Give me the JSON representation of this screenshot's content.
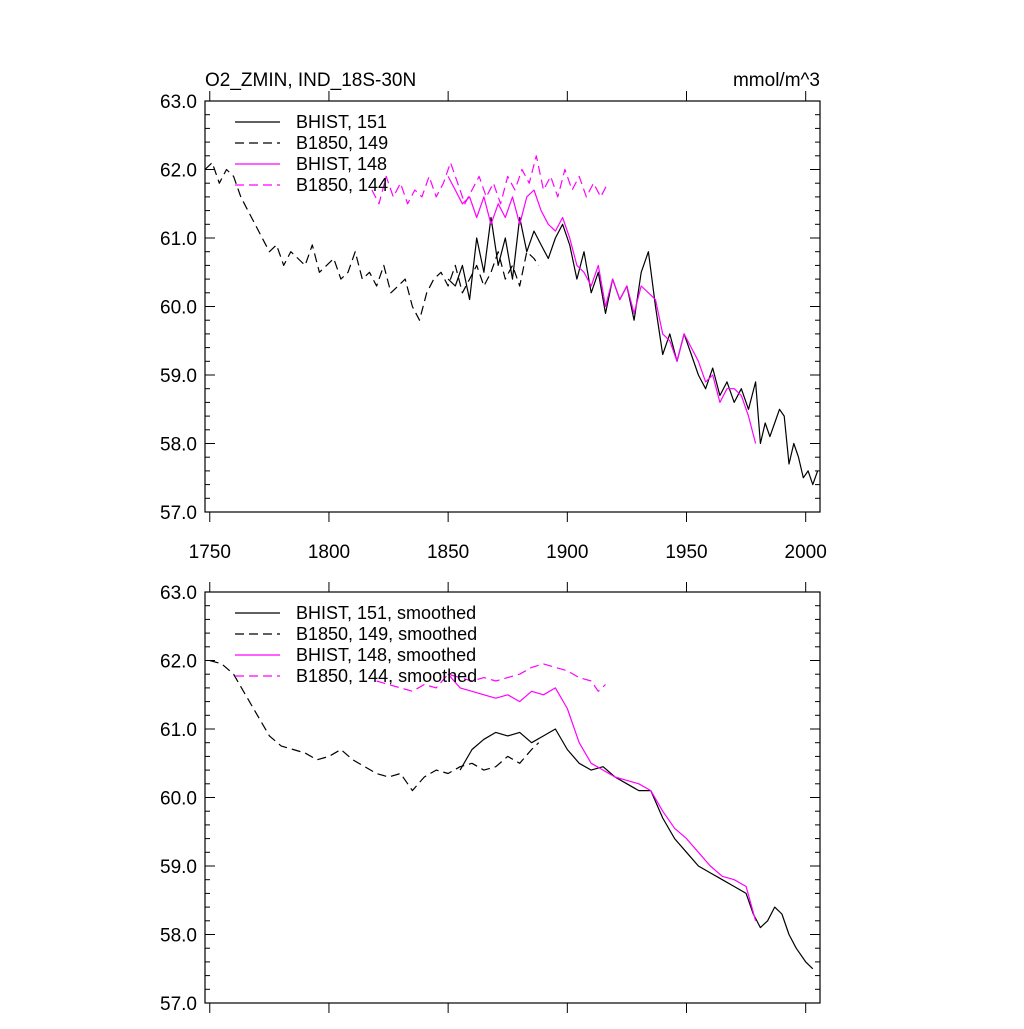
{
  "chart_data": [
    {
      "type": "line",
      "title": "O2_ZMIN, IND_18S-30N",
      "units": "mmol/m^3",
      "xlim": [
        1748,
        2006
      ],
      "ylim": [
        57.0,
        63.0
      ],
      "x_ticks": [
        1750,
        1800,
        1850,
        1900,
        1950,
        2000
      ],
      "y_ticks": [
        "57.0",
        "58.0",
        "59.0",
        "60.0",
        "61.0",
        "62.0",
        "63.0"
      ],
      "legend_position": "top-left",
      "series": [
        {
          "name": "BHIST, 151",
          "color": "#000000",
          "dash": "solid",
          "x": [
            1850,
            1853,
            1856,
            1859,
            1862,
            1865,
            1868,
            1871,
            1874,
            1877,
            1880,
            1883,
            1886,
            1889,
            1892,
            1895,
            1898,
            1901,
            1904,
            1907,
            1910,
            1913,
            1916,
            1919,
            1922,
            1925,
            1928,
            1931,
            1934,
            1937,
            1940,
            1943,
            1946,
            1949,
            1952,
            1955,
            1958,
            1961,
            1964,
            1967,
            1970,
            1973,
            1976,
            1979,
            1981,
            1983,
            1985,
            1987,
            1989,
            1991,
            1993,
            1995,
            1997,
            1999,
            2001,
            2003,
            2005
          ],
          "y": [
            60.4,
            60.3,
            60.6,
            60.1,
            61.0,
            60.5,
            61.3,
            60.6,
            61.0,
            60.4,
            61.3,
            60.8,
            61.1,
            60.9,
            60.7,
            61.0,
            61.2,
            60.9,
            60.4,
            60.8,
            60.2,
            60.5,
            59.9,
            60.4,
            60.1,
            60.3,
            59.8,
            60.5,
            60.8,
            60.0,
            59.3,
            59.6,
            59.2,
            59.6,
            59.3,
            59.0,
            58.8,
            59.1,
            58.7,
            58.9,
            58.6,
            58.8,
            58.5,
            58.9,
            58.0,
            58.3,
            58.1,
            58.3,
            58.5,
            58.4,
            57.7,
            58.0,
            57.8,
            57.5,
            57.6,
            57.4,
            57.6
          ]
        },
        {
          "name": "B1850, 149",
          "color": "#000000",
          "dash": "dashed",
          "x": [
            1748,
            1751,
            1754,
            1757,
            1760,
            1763,
            1766,
            1769,
            1772,
            1775,
            1778,
            1781,
            1784,
            1787,
            1790,
            1793,
            1796,
            1799,
            1802,
            1805,
            1808,
            1811,
            1814,
            1817,
            1820,
            1823,
            1826,
            1829,
            1832,
            1835,
            1838,
            1841,
            1844,
            1847,
            1850,
            1853,
            1856,
            1859,
            1862,
            1865,
            1868,
            1871,
            1874,
            1877,
            1880,
            1883,
            1886,
            1888
          ],
          "y": [
            62.0,
            62.1,
            61.8,
            62.0,
            61.9,
            61.6,
            61.4,
            61.2,
            61.0,
            60.8,
            60.9,
            60.6,
            60.8,
            60.7,
            60.6,
            60.9,
            60.5,
            60.6,
            60.7,
            60.4,
            60.5,
            60.8,
            60.4,
            60.5,
            60.3,
            60.6,
            60.2,
            60.3,
            60.4,
            60.0,
            59.8,
            60.2,
            60.4,
            60.5,
            60.3,
            60.6,
            60.2,
            60.4,
            60.6,
            60.3,
            60.5,
            60.8,
            60.4,
            60.6,
            60.3,
            60.8,
            60.7,
            60.6
          ]
        },
        {
          "name": "BHIST, 148",
          "color": "#ff00ff",
          "dash": "solid",
          "x": [
            1850,
            1853,
            1856,
            1859,
            1862,
            1865,
            1868,
            1871,
            1874,
            1877,
            1880,
            1883,
            1886,
            1889,
            1892,
            1895,
            1898,
            1901,
            1904,
            1907,
            1910,
            1913,
            1916,
            1919,
            1922,
            1925,
            1928,
            1931,
            1934,
            1937,
            1940,
            1943,
            1946,
            1949,
            1952,
            1955,
            1958,
            1961,
            1964,
            1967,
            1970,
            1973,
            1976,
            1979
          ],
          "y": [
            61.9,
            61.7,
            61.5,
            61.6,
            61.3,
            61.6,
            61.2,
            61.5,
            61.3,
            61.6,
            61.2,
            61.6,
            61.7,
            61.4,
            61.2,
            61.1,
            61.3,
            61.0,
            60.6,
            60.5,
            60.3,
            60.6,
            60.0,
            60.4,
            60.1,
            60.3,
            59.9,
            60.3,
            60.2,
            60.1,
            59.6,
            59.5,
            59.2,
            59.6,
            59.4,
            59.2,
            58.9,
            59.0,
            58.6,
            58.8,
            58.8,
            58.7,
            58.4,
            58.0
          ]
        },
        {
          "name": "B1850, 144",
          "color": "#ff00ff",
          "dash": "dashed",
          "x": [
            1818,
            1821,
            1824,
            1827,
            1830,
            1833,
            1836,
            1839,
            1842,
            1845,
            1848,
            1851,
            1854,
            1857,
            1860,
            1863,
            1866,
            1869,
            1872,
            1875,
            1878,
            1881,
            1884,
            1887,
            1890,
            1893,
            1896,
            1899,
            1902,
            1905,
            1908,
            1911,
            1914,
            1917
          ],
          "y": [
            61.7,
            61.5,
            61.9,
            61.6,
            61.8,
            61.5,
            61.7,
            61.6,
            61.9,
            61.6,
            61.8,
            62.1,
            61.8,
            61.5,
            61.7,
            61.9,
            61.6,
            61.8,
            61.5,
            61.9,
            61.7,
            62.0,
            61.8,
            62.2,
            61.7,
            61.9,
            61.6,
            62.0,
            61.7,
            61.9,
            61.6,
            61.8,
            61.6,
            61.8
          ]
        }
      ]
    },
    {
      "type": "line",
      "xlim": [
        1748,
        2006
      ],
      "ylim": [
        57.0,
        63.0
      ],
      "x_ticks": [
        1750,
        1800,
        1850,
        1900,
        1950,
        2000
      ],
      "y_ticks": [
        "57.0",
        "58.0",
        "59.0",
        "60.0",
        "61.0",
        "62.0",
        "63.0"
      ],
      "legend_position": "top-left",
      "series": [
        {
          "name": "BHIST, 151, smoothed",
          "color": "#000000",
          "dash": "solid",
          "x": [
            1855,
            1860,
            1865,
            1870,
            1875,
            1880,
            1885,
            1890,
            1895,
            1900,
            1905,
            1910,
            1915,
            1920,
            1925,
            1930,
            1935,
            1940,
            1945,
            1950,
            1955,
            1960,
            1965,
            1970,
            1975,
            1978,
            1981,
            1984,
            1987,
            1990,
            1993,
            1996,
            2000,
            2003
          ],
          "y": [
            60.4,
            60.7,
            60.85,
            60.95,
            60.9,
            60.95,
            60.8,
            60.9,
            61.0,
            60.7,
            60.5,
            60.4,
            60.45,
            60.3,
            60.2,
            60.1,
            60.1,
            59.7,
            59.4,
            59.2,
            59.0,
            58.9,
            58.8,
            58.7,
            58.6,
            58.3,
            58.1,
            58.2,
            58.4,
            58.3,
            58.0,
            57.8,
            57.6,
            57.5
          ]
        },
        {
          "name": "B1850, 149, smoothed",
          "color": "#000000",
          "dash": "dashed",
          "x": [
            1750,
            1755,
            1760,
            1765,
            1770,
            1775,
            1780,
            1785,
            1790,
            1795,
            1800,
            1805,
            1810,
            1815,
            1820,
            1825,
            1830,
            1835,
            1840,
            1845,
            1850,
            1855,
            1860,
            1865,
            1870,
            1875,
            1880,
            1885,
            1888
          ],
          "y": [
            62.0,
            61.95,
            61.8,
            61.5,
            61.2,
            60.9,
            60.75,
            60.7,
            60.65,
            60.55,
            60.6,
            60.7,
            60.55,
            60.45,
            60.35,
            60.3,
            60.35,
            60.1,
            60.3,
            60.4,
            60.35,
            60.45,
            60.5,
            60.4,
            60.45,
            60.6,
            60.5,
            60.7,
            60.8
          ]
        },
        {
          "name": "BHIST, 148, smoothed",
          "color": "#ff00ff",
          "dash": "solid",
          "x": [
            1850,
            1855,
            1860,
            1865,
            1870,
            1875,
            1880,
            1885,
            1890,
            1895,
            1900,
            1905,
            1910,
            1915,
            1920,
            1925,
            1930,
            1935,
            1940,
            1945,
            1950,
            1955,
            1960,
            1965,
            1970,
            1975,
            1979
          ],
          "y": [
            61.8,
            61.6,
            61.55,
            61.5,
            61.45,
            61.5,
            61.4,
            61.55,
            61.5,
            61.6,
            61.3,
            60.8,
            60.5,
            60.4,
            60.3,
            60.25,
            60.2,
            60.1,
            59.8,
            59.55,
            59.4,
            59.2,
            59.0,
            58.85,
            58.8,
            58.7,
            58.2
          ]
        },
        {
          "name": "B1850, 144, smoothed",
          "color": "#ff00ff",
          "dash": "dashed",
          "x": [
            1820,
            1825,
            1830,
            1835,
            1840,
            1845,
            1850,
            1855,
            1860,
            1865,
            1870,
            1875,
            1880,
            1885,
            1890,
            1895,
            1900,
            1905,
            1910,
            1913,
            1916
          ],
          "y": [
            61.7,
            61.65,
            61.6,
            61.55,
            61.65,
            61.6,
            61.8,
            61.75,
            61.7,
            61.75,
            61.7,
            61.75,
            61.8,
            61.9,
            61.95,
            61.9,
            61.85,
            61.75,
            61.7,
            61.55,
            61.65
          ]
        }
      ]
    }
  ]
}
